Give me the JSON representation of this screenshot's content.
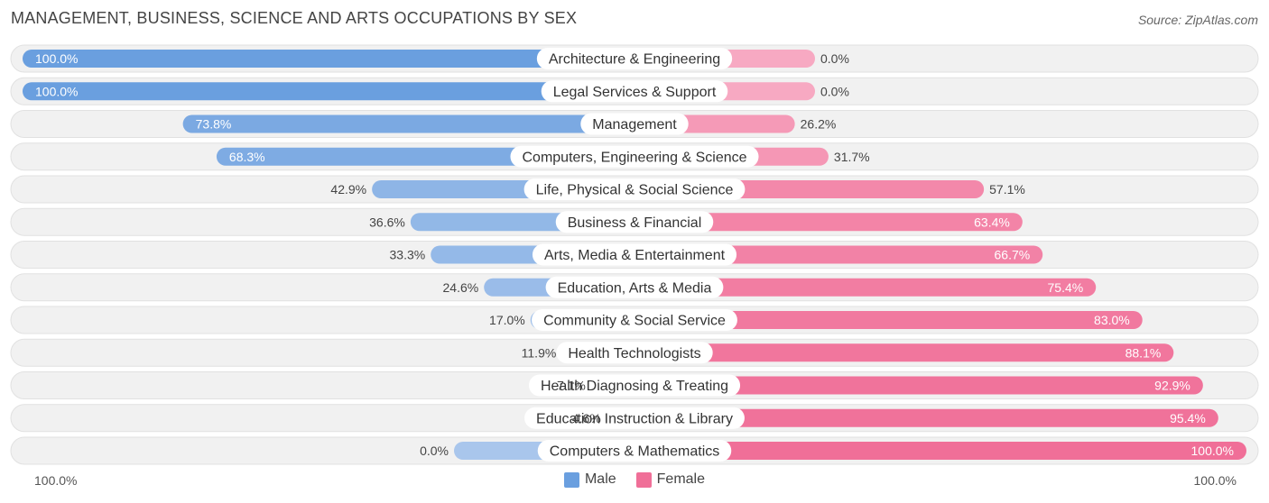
{
  "title": "MANAGEMENT, BUSINESS, SCIENCE AND ARTS OCCUPATIONS BY SEX",
  "source": "Source: ZipAtlas.com",
  "colors": {
    "male": "#6a9fdf",
    "male_light": "#a9c6ec",
    "female": "#f06f98",
    "female_light": "#f7a9c2",
    "row_bg": "#f1f1f1",
    "row_border": "#e1e1e1"
  },
  "chart_data": {
    "type": "bar",
    "orientation": "horizontal-diverging",
    "title": "MANAGEMENT, BUSINESS, SCIENCE AND ARTS OCCUPATIONS BY SEX",
    "categories": [
      "Architecture & Engineering",
      "Legal Services & Support",
      "Management",
      "Computers, Engineering & Science",
      "Life, Physical & Social Science",
      "Business & Financial",
      "Arts, Media & Entertainment",
      "Education, Arts & Media",
      "Community & Social Service",
      "Health Technologists",
      "Health Diagnosing & Treating",
      "Education Instruction & Library",
      "Computers & Mathematics"
    ],
    "series": [
      {
        "name": "Male",
        "values": [
          100.0,
          100.0,
          73.8,
          68.3,
          42.9,
          36.6,
          33.3,
          24.6,
          17.0,
          11.9,
          7.1,
          4.6,
          0.0
        ],
        "labels": [
          "100.0%",
          "100.0%",
          "73.8%",
          "68.3%",
          "42.9%",
          "36.6%",
          "33.3%",
          "24.6%",
          "17.0%",
          "11.9%",
          "7.1%",
          "4.6%",
          "0.0%"
        ]
      },
      {
        "name": "Female",
        "values": [
          0.0,
          0.0,
          26.2,
          31.7,
          57.1,
          63.4,
          66.7,
          75.4,
          83.0,
          88.1,
          92.9,
          95.4,
          100.0
        ],
        "labels": [
          "0.0%",
          "0.0%",
          "26.2%",
          "31.7%",
          "57.1%",
          "63.4%",
          "66.7%",
          "75.4%",
          "83.0%",
          "88.1%",
          "92.9%",
          "95.4%",
          "100.0%"
        ]
      }
    ],
    "xlim": [
      -100,
      100
    ],
    "axis_left_label": "100.0%",
    "axis_right_label": "100.0%",
    "legend": [
      "Male",
      "Female"
    ],
    "legend_position": "bottom-center"
  }
}
